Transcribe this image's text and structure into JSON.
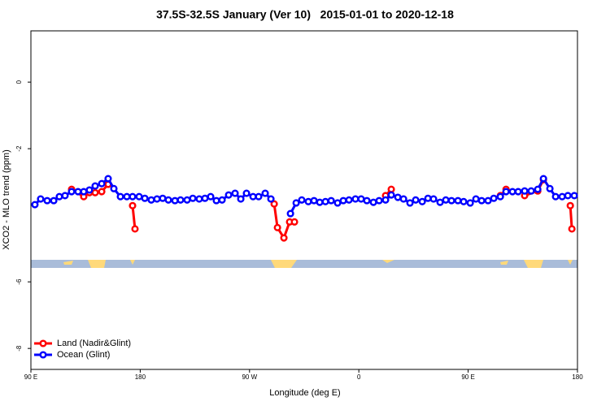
{
  "chart_data": {
    "type": "line",
    "title": "37.5S-32.5S January (Ver 10)   2015-01-01 to 2020-12-18",
    "x_label": "Longitude (deg E)",
    "y_label": "XCO2 - MLO trend (ppm)",
    "xlim": [
      90,
      540
    ],
    "ylim": [
      -8.63,
      1.54
    ],
    "xticks": [
      {
        "value": 90,
        "label": "90 E"
      },
      180,
      {
        "value": 270,
        "label": "90 W"
      },
      {
        "value": 360,
        "label": "0"
      },
      {
        "value": 450,
        "label": "90 E"
      },
      {
        "value": 540,
        "label": "180"
      }
    ],
    "yticks": [
      0,
      -2,
      -6,
      -8
    ],
    "legend": "bottom-left",
    "series": [
      {
        "name": "Land (Nadir&Glint)",
        "color": "#ff0000",
        "x": [
          123.5,
          133.5,
          138.2,
          142.9,
          148.3,
          153.6,
          null,
          173.7,
          175.7,
          null,
          290.3,
          293.0,
          298.3,
          303.0,
          307.0,
          null,
          382.0,
          386.7,
          null,
          476.5,
          481.2,
          null,
          496.5,
          507.3,
          512.0,
          null,
          534.1,
          535.4
        ],
        "values": [
          -3.22,
          -3.44,
          -3.32,
          -3.32,
          -3.29,
          -3.07,
          null,
          -3.71,
          -4.41,
          null,
          -3.66,
          -4.37,
          -4.68,
          -4.2,
          -4.2,
          null,
          -3.41,
          -3.22,
          null,
          -3.41,
          -3.22,
          null,
          -3.41,
          -3.27,
          -2.93,
          null,
          -3.71,
          -4.41
        ]
      },
      {
        "name": "Ocean (Glint)",
        "color": "#0000ff",
        "x": [
          93.3,
          98.0,
          103.4,
          108.8,
          113.4,
          118.1,
          123.5,
          128.8,
          133.5,
          138.2,
          142.9,
          148.3,
          153.6,
          158.3,
          163.7,
          169.0,
          173.7,
          179.1,
          183.8,
          189.1,
          193.8,
          198.5,
          203.2,
          208.6,
          213.2,
          218.6,
          223.3,
          228.6,
          233.3,
          238.0,
          242.7,
          247.4,
          252.8,
          258.1,
          262.8,
          267.5,
          272.9,
          277.5,
          282.9,
          287.6,
          null,
          303.7,
          308.4,
          313.0,
          318.4,
          323.1,
          327.8,
          332.5,
          337.2,
          342.5,
          347.2,
          351.9,
          357.2,
          361.9,
          366.6,
          372.0,
          376.7,
          382.0,
          386.7,
          392.1,
          396.8,
          402.1,
          406.8,
          412.2,
          416.9,
          421.5,
          426.9,
          431.6,
          436.3,
          441.6,
          446.3,
          451.7,
          456.4,
          461.1,
          466.4,
          471.1,
          476.5,
          481.2,
          486.5,
          491.2,
          496.5,
          501.9,
          507.3,
          512.0,
          517.3,
          522.0,
          527.4,
          532.1,
          537.4
        ],
        "values": [
          -3.68,
          -3.51,
          -3.56,
          -3.56,
          -3.44,
          -3.41,
          -3.29,
          -3.29,
          -3.29,
          -3.24,
          -3.12,
          -3.05,
          -2.9,
          -3.2,
          -3.44,
          -3.44,
          -3.44,
          -3.44,
          -3.49,
          -3.54,
          -3.51,
          -3.49,
          -3.54,
          -3.56,
          -3.54,
          -3.54,
          -3.49,
          -3.51,
          -3.49,
          -3.44,
          -3.56,
          -3.54,
          -3.39,
          -3.34,
          -3.51,
          -3.34,
          -3.44,
          -3.44,
          -3.34,
          -3.51,
          null,
          -3.95,
          -3.63,
          -3.54,
          -3.59,
          -3.56,
          -3.61,
          -3.59,
          -3.56,
          -3.63,
          -3.56,
          -3.54,
          -3.51,
          -3.51,
          -3.56,
          -3.61,
          -3.56,
          -3.54,
          -3.39,
          -3.46,
          -3.51,
          -3.63,
          -3.54,
          -3.59,
          -3.49,
          -3.51,
          -3.61,
          -3.54,
          -3.56,
          -3.56,
          -3.59,
          -3.63,
          -3.51,
          -3.56,
          -3.56,
          -3.49,
          -3.44,
          -3.29,
          -3.29,
          -3.29,
          -3.27,
          -3.27,
          -3.22,
          -2.9,
          -3.2,
          -3.44,
          -3.44,
          -3.41,
          -3.41
        ]
      }
    ]
  }
}
